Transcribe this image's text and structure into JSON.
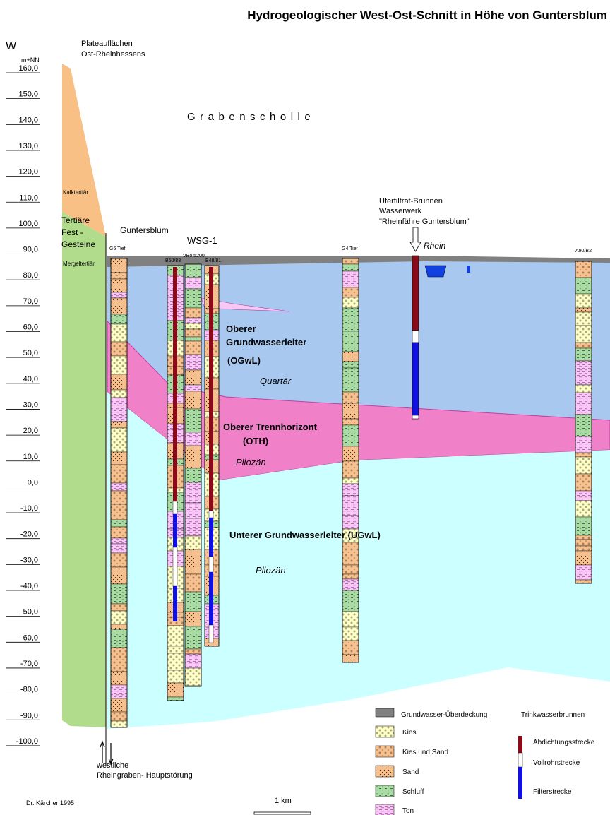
{
  "header": {
    "title": "Hydrogeologischer West-Ost-Schnitt in Höhe von Guntersblum"
  },
  "axis": {
    "direction": "W",
    "unit": "m+NN",
    "ticks": [
      "160,0",
      "150,0",
      "140,0",
      "130,0",
      "120,0",
      "110,0",
      "100,0",
      "90,0",
      "80,0",
      "70,0",
      "60,0",
      "50,0",
      "40,0",
      "30,0",
      "20,0",
      "10,0",
      "0,0",
      "-10,0",
      "-20,0",
      "-30,0",
      "-40,0",
      "-50,0",
      "-60,0",
      "-70,0",
      "-80,0",
      "-90,0",
      "-100,0"
    ]
  },
  "regions": {
    "plateau": [
      "Plateauflächen",
      "Ost-Rheinhessens"
    ],
    "block": "Grabenscholle",
    "kalk": "Kalktertiär",
    "fest": [
      "Tertiäre",
      "Fest -",
      "Gesteine"
    ],
    "mergel": "Mergeltertiär"
  },
  "places": {
    "town": "Guntersblum",
    "wsg": "WSG-1",
    "river": "Rhein"
  },
  "wells": [
    "G6 Tief",
    "B50/83",
    "VBo 5200",
    "B48/81",
    "G4 Tief",
    "A90/B2"
  ],
  "waterworks": [
    "Uferfiltrat-Brunnen",
    "Wasserwerk",
    "\"Rheinfähre Guntersblum\""
  ],
  "aquifers": {
    "ogwl": [
      "Oberer",
      "Grundwasserleiter",
      "(OGwL)"
    ],
    "ogwl_age": "Quartär",
    "oth": [
      "Oberer Trennhorizont",
      "(OTH)"
    ],
    "oth_age": "Pliozän",
    "ugwl": "Unterer Grundwasserleiter (UGwL)",
    "ugwl_age": "Pliozän"
  },
  "fault": [
    "westliche",
    "Rheingraben- Hauptstörung"
  ],
  "credit": "Dr. Kärcher 1995",
  "scale": "1 km",
  "legend": {
    "layers": [
      "Grundwasser-Überdeckung",
      "Kies",
      "Kies und Sand",
      "Sand",
      "Schluff",
      "Ton"
    ],
    "well_title": "Trinkwasserbrunnen",
    "well_parts": [
      "Abdichtungsstrecke",
      "Vollrohrstrecke",
      "Filterstrecke"
    ]
  }
}
